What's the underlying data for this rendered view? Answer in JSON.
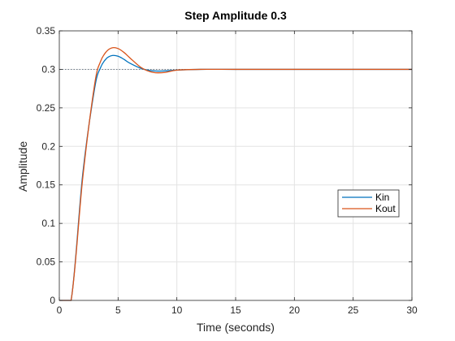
{
  "chart_data": {
    "type": "line",
    "title": "Step Amplitude 0.3",
    "xlabel": "Time (seconds)",
    "ylabel": "Amplitude",
    "xlim": [
      0,
      30
    ],
    "ylim": [
      0,
      0.35
    ],
    "xticks": [
      "0",
      "5",
      "10",
      "15",
      "20",
      "25",
      "30"
    ],
    "yticks": [
      "0",
      "0.05",
      "0.1",
      "0.15",
      "0.2",
      "0.25",
      "0.3",
      "0.35"
    ],
    "grid": true,
    "legend_position": "center-right",
    "reference_line": {
      "y": 0.3,
      "style": "dotted"
    },
    "series": [
      {
        "name": "Kin",
        "color": "#0072BD",
        "x": [
          0,
          1,
          2,
          3,
          3.5,
          4,
          4.5,
          5,
          5.5,
          6,
          7,
          8,
          9,
          10,
          12,
          15,
          20,
          30
        ],
        "y": [
          0,
          0,
          0.165,
          0.275,
          0.302,
          0.314,
          0.318,
          0.317,
          0.313,
          0.308,
          0.301,
          0.298,
          0.298,
          0.299,
          0.3,
          0.3,
          0.3,
          0.3
        ]
      },
      {
        "name": "Kout",
        "color": "#D95319",
        "x": [
          0,
          1,
          2,
          3,
          3.5,
          4,
          4.5,
          5,
          5.5,
          6,
          7,
          8,
          9,
          10,
          12,
          15,
          20,
          30
        ],
        "y": [
          0,
          0,
          0.16,
          0.28,
          0.31,
          0.323,
          0.328,
          0.327,
          0.322,
          0.315,
          0.302,
          0.296,
          0.296,
          0.299,
          0.3,
          0.3,
          0.3,
          0.3
        ]
      }
    ]
  }
}
